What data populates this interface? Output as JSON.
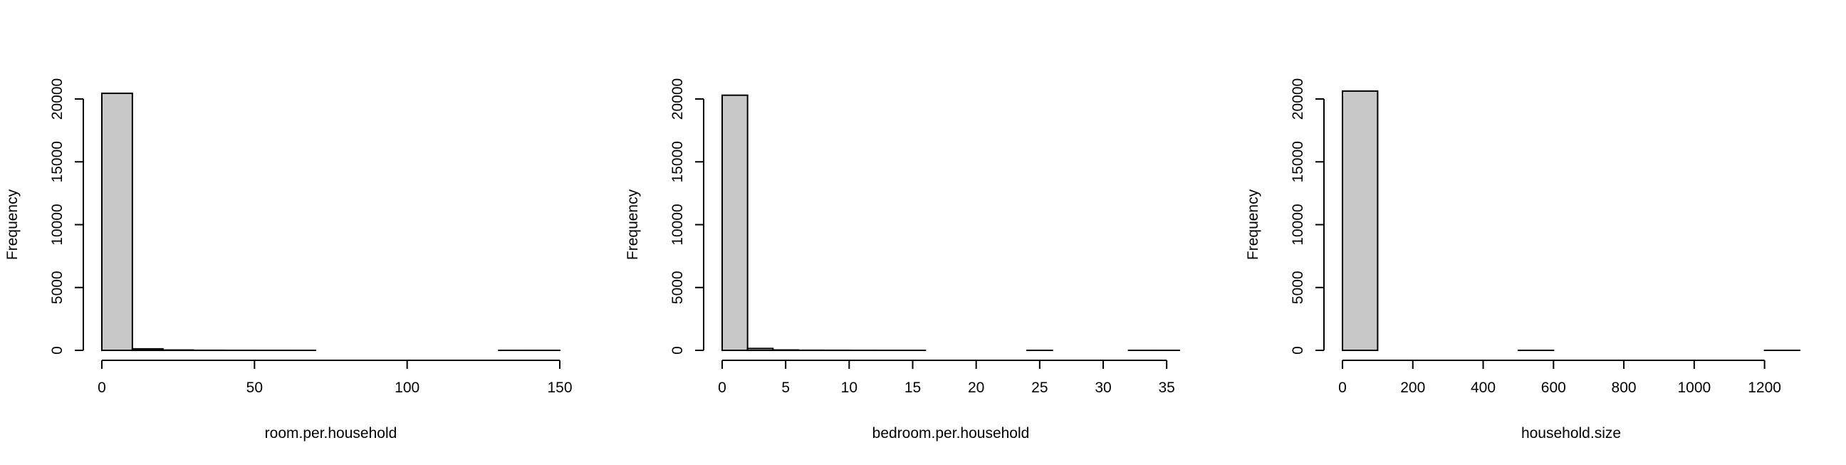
{
  "colors": {
    "bar_fill": "#c8c8c8",
    "stroke": "#000000",
    "background": "#ffffff"
  },
  "chart_data": [
    {
      "type": "bar",
      "title": "",
      "xlabel": "room.per.household",
      "ylabel": "Frequency",
      "xlim": [
        0,
        150
      ],
      "ylim": [
        0,
        20000
      ],
      "xticks": [
        "0",
        "50",
        "100",
        "150"
      ],
      "yticks": [
        "0",
        "5000",
        "10000",
        "15000",
        "20000"
      ],
      "bin_width": 10,
      "bins": [
        {
          "x0": 0,
          "x1": 10,
          "count": 20450
        },
        {
          "x0": 10,
          "x1": 20,
          "count": 120
        },
        {
          "x0": 20,
          "x1": 30,
          "count": 25
        },
        {
          "x0": 30,
          "x1": 40,
          "count": 5
        },
        {
          "x0": 40,
          "x1": 50,
          "count": 3
        },
        {
          "x0": 50,
          "x1": 60,
          "count": 2
        },
        {
          "x0": 60,
          "x1": 70,
          "count": 1
        },
        {
          "x0": 70,
          "x1": 80,
          "count": 0
        },
        {
          "x0": 80,
          "x1": 90,
          "count": 0
        },
        {
          "x0": 90,
          "x1": 100,
          "count": 0
        },
        {
          "x0": 100,
          "x1": 110,
          "count": 0
        },
        {
          "x0": 110,
          "x1": 120,
          "count": 0
        },
        {
          "x0": 120,
          "x1": 130,
          "count": 0
        },
        {
          "x0": 130,
          "x1": 140,
          "count": 1
        },
        {
          "x0": 140,
          "x1": 150,
          "count": 1
        }
      ]
    },
    {
      "type": "bar",
      "title": "",
      "xlabel": "bedroom.per.household",
      "ylabel": "Frequency",
      "xlim": [
        0,
        36
      ],
      "ylim": [
        0,
        20000
      ],
      "xticks": [
        "0",
        "5",
        "10",
        "15",
        "20",
        "25",
        "30",
        "35"
      ],
      "yticks": [
        "0",
        "5000",
        "10000",
        "15000",
        "20000"
      ],
      "bin_width": 2,
      "bins": [
        {
          "x0": 0,
          "x1": 2,
          "count": 20300
        },
        {
          "x0": 2,
          "x1": 4,
          "count": 150
        },
        {
          "x0": 4,
          "x1": 6,
          "count": 30
        },
        {
          "x0": 6,
          "x1": 8,
          "count": 10
        },
        {
          "x0": 8,
          "x1": 10,
          "count": 5
        },
        {
          "x0": 10,
          "x1": 12,
          "count": 3
        },
        {
          "x0": 12,
          "x1": 14,
          "count": 2
        },
        {
          "x0": 14,
          "x1": 16,
          "count": 1
        },
        {
          "x0": 16,
          "x1": 18,
          "count": 0
        },
        {
          "x0": 18,
          "x1": 20,
          "count": 0
        },
        {
          "x0": 20,
          "x1": 22,
          "count": 0
        },
        {
          "x0": 22,
          "x1": 24,
          "count": 0
        },
        {
          "x0": 24,
          "x1": 26,
          "count": 1
        },
        {
          "x0": 26,
          "x1": 28,
          "count": 0
        },
        {
          "x0": 28,
          "x1": 30,
          "count": 0
        },
        {
          "x0": 30,
          "x1": 32,
          "count": 0
        },
        {
          "x0": 32,
          "x1": 34,
          "count": 1
        },
        {
          "x0": 34,
          "x1": 36,
          "count": 1
        }
      ]
    },
    {
      "type": "bar",
      "title": "",
      "xlabel": "household.size",
      "ylabel": "Frequency",
      "xlim": [
        0,
        1300
      ],
      "ylim": [
        0,
        20000
      ],
      "xticks": [
        "0",
        "200",
        "400",
        "600",
        "800",
        "1000",
        "1200"
      ],
      "yticks": [
        "0",
        "5000",
        "10000",
        "15000",
        "20000"
      ],
      "bin_width": 100,
      "bins": [
        {
          "x0": 0,
          "x1": 100,
          "count": 20630
        },
        {
          "x0": 100,
          "x1": 200,
          "count": 0
        },
        {
          "x0": 200,
          "x1": 300,
          "count": 0
        },
        {
          "x0": 300,
          "x1": 400,
          "count": 0
        },
        {
          "x0": 400,
          "x1": 500,
          "count": 0
        },
        {
          "x0": 500,
          "x1": 600,
          "count": 1
        },
        {
          "x0": 600,
          "x1": 700,
          "count": 0
        },
        {
          "x0": 700,
          "x1": 800,
          "count": 0
        },
        {
          "x0": 800,
          "x1": 900,
          "count": 0
        },
        {
          "x0": 900,
          "x1": 1000,
          "count": 0
        },
        {
          "x0": 1000,
          "x1": 1100,
          "count": 0
        },
        {
          "x0": 1100,
          "x1": 1200,
          "count": 0
        },
        {
          "x0": 1200,
          "x1": 1300,
          "count": 1
        }
      ]
    }
  ]
}
